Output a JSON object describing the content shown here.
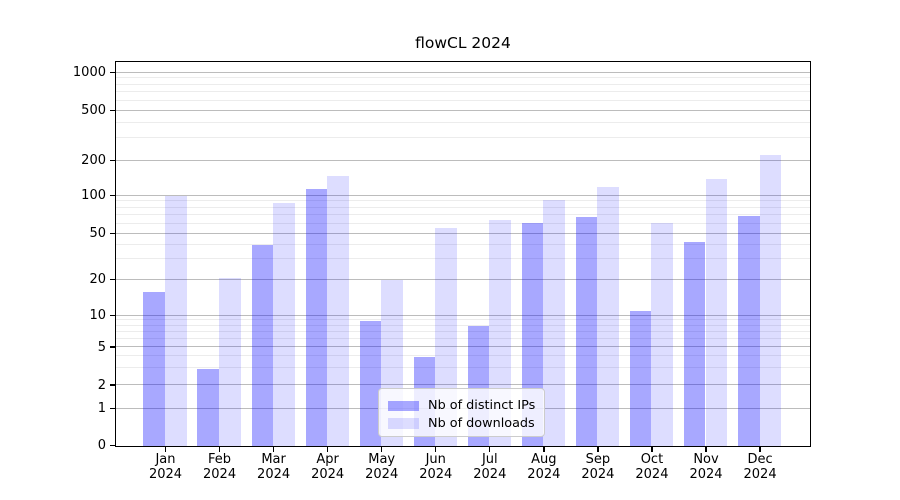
{
  "chart_data": {
    "type": "bar",
    "title": "flowCL 2024",
    "categories": [
      "Jan 2024",
      "Feb 2024",
      "Mar 2024",
      "Apr 2024",
      "May 2024",
      "Jun 2024",
      "Jul 2024",
      "Aug 2024",
      "Sep 2024",
      "Oct 2024",
      "Nov 2024",
      "Dec 2024"
    ],
    "series": [
      {
        "name": "Nb of distinct IPs",
        "color": "#0000ff",
        "alpha": 0.34,
        "values": [
          16,
          3,
          40,
          115,
          9,
          4,
          8,
          61,
          68,
          11,
          43,
          70
        ]
      },
      {
        "name": "Nb of downloads",
        "color": "#0000ff",
        "alpha": 0.135,
        "values": [
          100,
          21,
          88,
          150,
          20,
          56,
          64,
          93,
          120,
          61,
          140,
          225
        ]
      }
    ],
    "yticks": [
      0,
      1,
      2,
      5,
      10,
      20,
      50,
      100,
      200,
      500,
      1000
    ],
    "minor_gridlines": [
      3,
      4,
      6,
      7,
      8,
      9,
      30,
      40,
      60,
      70,
      80,
      90,
      300,
      400,
      600,
      700,
      800,
      900
    ],
    "scale": "symlog",
    "ylim": [
      0,
      1150
    ],
    "xlabel": "",
    "ylabel": "",
    "grid": true,
    "legend_position": "lower center"
  },
  "colors": {
    "bar_distinct_ips": "#a8a8ff",
    "bar_downloads": "#dedeff",
    "grid_major": "#bcbcbc",
    "grid_minor": "#ececec",
    "axis": "#000000",
    "background": "#ffffff"
  }
}
